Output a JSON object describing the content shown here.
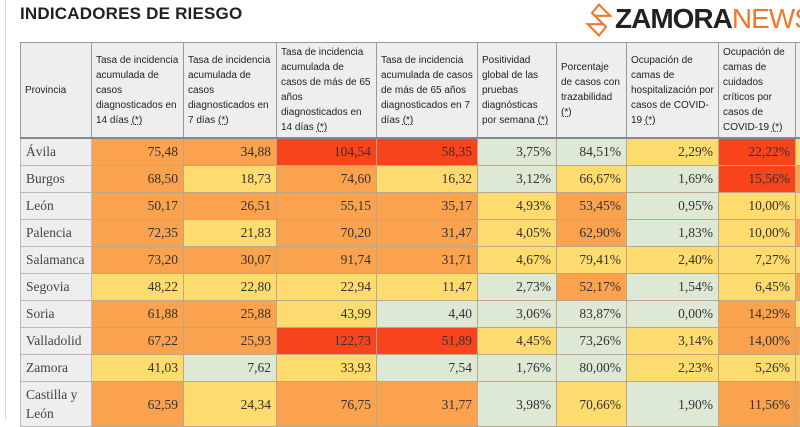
{
  "title": "INDICADORES DE RIESGO",
  "headers": [
    {
      "text": "Provincia",
      "ref": ""
    },
    {
      "text": "Tasa de incidencia acumulada de casos diagnosticados en 14 días ",
      "ref": "(*)"
    },
    {
      "text": "Tasa de incidencia acumulada de casos diagnosticados en 7 días ",
      "ref": "(*)"
    },
    {
      "text": "Tasa de incidencia acumulada de casos de más de 65 años diagnosticados en 14 días ",
      "ref": "(*)"
    },
    {
      "text": "Tasa de incidencia acumulada de casos de más de 65 años diagnosticados en 7 días ",
      "ref": "(*)"
    },
    {
      "text": "Positividad global de las pruebas diagnósticas por semana ",
      "ref": "(*)"
    },
    {
      "text": "Porcentaje de casos con trazabilidad ",
      "ref": "(*)"
    },
    {
      "text": "Ocupación de camas de hospitalización por casos de COVID-19 ",
      "ref": "(*)"
    },
    {
      "text": "Ocupación de camas de cuidados críticos por casos de COVID-19 ",
      "ref": "(*)"
    }
  ],
  "rows": [
    {
      "provincia": "Ávila",
      "values": [
        "75,48",
        "34,88",
        "104,54",
        "58,35",
        "3,75%",
        "84,51%",
        "2,29%",
        "22,22%"
      ],
      "levels": [
        "O",
        "O",
        "R",
        "R",
        "G",
        "G",
        "Y",
        "R"
      ]
    },
    {
      "provincia": "Burgos",
      "values": [
        "68,50",
        "18,73",
        "74,60",
        "16,32",
        "3,12%",
        "66,67%",
        "1,69%",
        "15,56%"
      ],
      "levels": [
        "O",
        "Y",
        "O",
        "Y",
        "G",
        "Y",
        "G",
        "R"
      ]
    },
    {
      "provincia": "León",
      "values": [
        "50,17",
        "26,51",
        "55,15",
        "35,17",
        "4,93%",
        "53,45%",
        "0,95%",
        "10,00%"
      ],
      "levels": [
        "O",
        "O",
        "O",
        "O",
        "Y",
        "O",
        "G",
        "Y"
      ]
    },
    {
      "provincia": "Palencia",
      "values": [
        "72,35",
        "21,83",
        "70,20",
        "31,47",
        "4,05%",
        "62,90%",
        "1,83%",
        "10,00%"
      ],
      "levels": [
        "O",
        "Y",
        "O",
        "O",
        "Y",
        "O",
        "G",
        "Y"
      ]
    },
    {
      "provincia": "Salamanca",
      "values": [
        "73,20",
        "30,07",
        "91,74",
        "31,71",
        "4,67%",
        "79,41%",
        "2,40%",
        "7,27%"
      ],
      "levels": [
        "O",
        "O",
        "O",
        "O",
        "Y",
        "Y",
        "Y",
        "Y"
      ]
    },
    {
      "provincia": "Segovia",
      "values": [
        "48,22",
        "22,80",
        "22,94",
        "11,47",
        "2,73%",
        "52,17%",
        "1,54%",
        "6,45%"
      ],
      "levels": [
        "Y",
        "Y",
        "Y",
        "Y",
        "G",
        "O",
        "G",
        "Y"
      ]
    },
    {
      "provincia": "Soria",
      "values": [
        "61,88",
        "25,88",
        "43,99",
        "4,40",
        "3,06%",
        "83,87%",
        "0,00%",
        "14,29%"
      ],
      "levels": [
        "O",
        "O",
        "Y",
        "G",
        "G",
        "G",
        "G",
        "O"
      ]
    },
    {
      "provincia": "Valladolid",
      "values": [
        "67,22",
        "25,93",
        "122,73",
        "51,89",
        "4,45%",
        "73,26%",
        "3,14%",
        "14,00%"
      ],
      "levels": [
        "O",
        "O",
        "R",
        "R",
        "Y",
        "G",
        "Y",
        "O"
      ]
    },
    {
      "provincia": "Zamora",
      "values": [
        "41,03",
        "7,62",
        "33,93",
        "7,54",
        "1,76%",
        "80,00%",
        "2,23%",
        "5,26%"
      ],
      "levels": [
        "Y",
        "G",
        "Y",
        "G",
        "G",
        "G",
        "Y",
        "Y"
      ]
    },
    {
      "provincia": "Castilla y León",
      "values": [
        "62,59",
        "24,34",
        "76,75",
        "31,77",
        "3,98%",
        "70,66%",
        "1,90%",
        "11,56%"
      ],
      "levels": [
        "O",
        "Y",
        "O",
        "O",
        "G",
        "Y",
        "G",
        "O"
      ]
    }
  ],
  "watermark": {
    "brand": "ZAMORA",
    "brand2": "NEWS"
  }
}
